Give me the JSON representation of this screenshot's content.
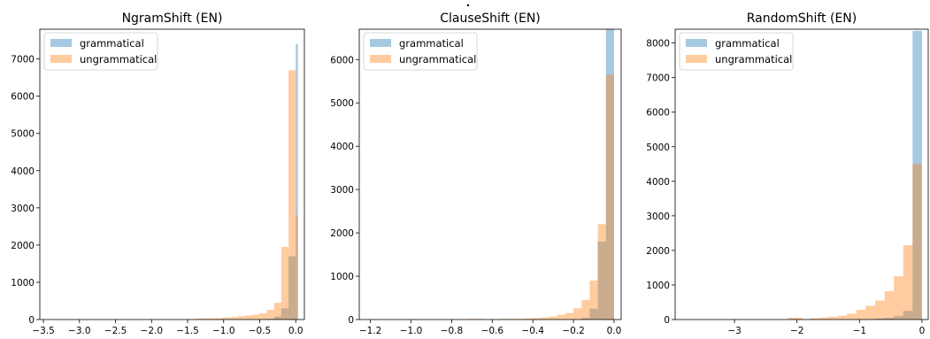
{
  "colors": {
    "grammatical": "#1f77b4",
    "ungrammatical": "#ff7f0e",
    "bar_alpha": 0.4
  },
  "chart_data": [
    {
      "type": "histogram",
      "title": "NgramShift (EN)",
      "xlabel": "",
      "ylabel": "",
      "xlim": [
        -3.55,
        0.12
      ],
      "ylim": [
        0,
        7800
      ],
      "xticks": [
        -3.5,
        -3.0,
        -2.5,
        -2.0,
        -1.5,
        -1.0,
        -0.5,
        0.0
      ],
      "xtick_labels": [
        "−3.5",
        "−3.0",
        "−2.5",
        "−2.0",
        "−1.5",
        "−1.0",
        "−0.5",
        "0.0"
      ],
      "yticks": [
        0,
        1000,
        2000,
        3000,
        4000,
        5000,
        6000,
        7000
      ],
      "ytick_labels": [
        "0",
        "1000",
        "2000",
        "3000",
        "4000",
        "5000",
        "6000",
        "7000"
      ],
      "legend": {
        "position": "upper left",
        "entries": [
          "grammatical",
          "ungrammatical"
        ]
      },
      "series": [
        {
          "name": "grammatical",
          "bins": [
            [
              -0.5,
              -0.4,
              5
            ],
            [
              -0.4,
              -0.3,
              20
            ],
            [
              -0.3,
              -0.2,
              80
            ],
            [
              -0.2,
              -0.1,
              300
            ],
            [
              -0.1,
              0.0,
              1700
            ],
            [
              0.0,
              0.03,
              7400
            ]
          ]
        },
        {
          "name": "ungrammatical",
          "bins": [
            [
              -1.4,
              -1.3,
              20
            ],
            [
              -1.3,
              -1.2,
              30
            ],
            [
              -1.2,
              -1.1,
              35
            ],
            [
              -1.1,
              -1.0,
              40
            ],
            [
              -1.0,
              -0.9,
              55
            ],
            [
              -0.9,
              -0.8,
              70
            ],
            [
              -0.8,
              -0.7,
              90
            ],
            [
              -0.7,
              -0.6,
              110
            ],
            [
              -0.6,
              -0.5,
              130
            ],
            [
              -0.5,
              -0.4,
              170
            ],
            [
              -0.4,
              -0.3,
              260
            ],
            [
              -0.3,
              -0.2,
              450
            ],
            [
              -0.2,
              -0.1,
              1950
            ],
            [
              -0.1,
              0.0,
              6700
            ],
            [
              0.0,
              0.03,
              2800
            ]
          ]
        }
      ]
    },
    {
      "type": "histogram",
      "title": "ClauseShift (EN)",
      "xlabel": "",
      "ylabel": "",
      "xlim": [
        -1.255,
        0.035
      ],
      "ylim": [
        0,
        6700
      ],
      "xticks": [
        -1.2,
        -1.0,
        -0.8,
        -0.6,
        -0.4,
        -0.2,
        0.0
      ],
      "xtick_labels": [
        "−1.2",
        "−1.0",
        "−0.8",
        "−0.6",
        "−0.4",
        "−0.2",
        "0.0"
      ],
      "yticks": [
        0,
        1000,
        2000,
        3000,
        4000,
        5000,
        6000
      ],
      "ytick_labels": [
        "0",
        "1000",
        "2000",
        "3000",
        "4000",
        "5000",
        "6000"
      ],
      "legend": {
        "position": "upper left",
        "entries": [
          "grammatical",
          "ungrammatical"
        ]
      },
      "series": [
        {
          "name": "grammatical",
          "bins": [
            [
              -0.16,
              -0.12,
              40
            ],
            [
              -0.12,
              -0.08,
              250
            ],
            [
              -0.08,
              -0.04,
              1800
            ],
            [
              -0.04,
              0.0,
              6700
            ]
          ]
        },
        {
          "name": "ungrammatical",
          "bins": [
            [
              -0.72,
              -0.64,
              15
            ],
            [
              -0.56,
              -0.44,
              15
            ],
            [
              -0.44,
              -0.4,
              25
            ],
            [
              -0.4,
              -0.36,
              35
            ],
            [
              -0.36,
              -0.32,
              50
            ],
            [
              -0.32,
              -0.28,
              70
            ],
            [
              -0.28,
              -0.24,
              110
            ],
            [
              -0.24,
              -0.2,
              150
            ],
            [
              -0.2,
              -0.16,
              260
            ],
            [
              -0.16,
              -0.12,
              450
            ],
            [
              -0.12,
              -0.08,
              900
            ],
            [
              -0.08,
              -0.04,
              2200
            ],
            [
              -0.04,
              0.0,
              5650
            ]
          ]
        }
      ]
    },
    {
      "type": "histogram",
      "title": "RandomShift (EN)",
      "xlabel": "",
      "ylabel": "",
      "xlim": [
        -3.95,
        0.1
      ],
      "ylim": [
        0,
        8400
      ],
      "xticks": [
        -3,
        -2,
        -1,
        0
      ],
      "xtick_labels": [
        "−3",
        "−2",
        "−1",
        "0"
      ],
      "yticks": [
        0,
        1000,
        2000,
        3000,
        4000,
        5000,
        6000,
        7000,
        8000
      ],
      "ytick_labels": [
        "0",
        "1000",
        "2000",
        "3000",
        "4000",
        "5000",
        "6000",
        "7000",
        "8000"
      ],
      "legend": {
        "position": "upper left",
        "entries": [
          "grammatical",
          "ungrammatical"
        ]
      },
      "series": [
        {
          "name": "grammatical",
          "bins": [
            [
              -0.75,
              -0.6,
              30
            ],
            [
              -0.6,
              -0.45,
              50
            ],
            [
              -0.45,
              -0.3,
              100
            ],
            [
              -0.3,
              -0.15,
              250
            ],
            [
              -0.15,
              0.0,
              8350
            ]
          ]
        },
        {
          "name": "ungrammatical",
          "bins": [
            [
              -2.15,
              -1.9,
              50
            ],
            [
              -1.8,
              -1.65,
              40
            ],
            [
              -1.65,
              -1.5,
              60
            ],
            [
              -1.5,
              -1.35,
              80
            ],
            [
              -1.35,
              -1.2,
              110
            ],
            [
              -1.2,
              -1.05,
              170
            ],
            [
              -1.05,
              -0.9,
              280
            ],
            [
              -0.9,
              -0.75,
              400
            ],
            [
              -0.75,
              -0.6,
              550
            ],
            [
              -0.6,
              -0.45,
              820
            ],
            [
              -0.45,
              -0.3,
              1250
            ],
            [
              -0.3,
              -0.15,
              2150
            ],
            [
              -0.15,
              0.0,
              4500
            ]
          ]
        }
      ]
    }
  ]
}
